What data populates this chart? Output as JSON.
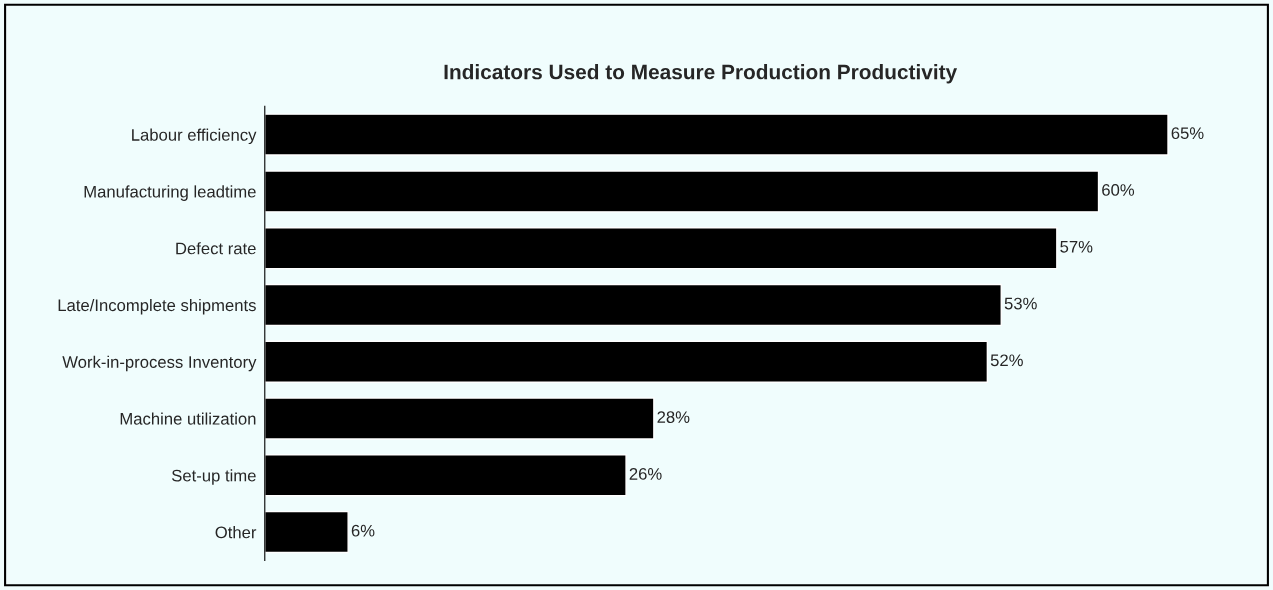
{
  "chart_data": {
    "type": "bar",
    "orientation": "horizontal",
    "title": "Indicators Used to Measure Production Productivity",
    "categories": [
      "Labour efficiency",
      "Manufacturing leadtime",
      "Defect rate",
      "Late/Incomplete shipments",
      "Work-in-process Inventory",
      "Machine utilization",
      "Set-up time",
      "Other"
    ],
    "values": [
      65,
      60,
      57,
      53,
      52,
      28,
      26,
      6
    ],
    "value_labels": [
      "65%",
      "60%",
      "57%",
      "53%",
      "52%",
      "28%",
      "26%",
      "6%"
    ],
    "color": "#000000",
    "grid": false,
    "legend": false
  }
}
